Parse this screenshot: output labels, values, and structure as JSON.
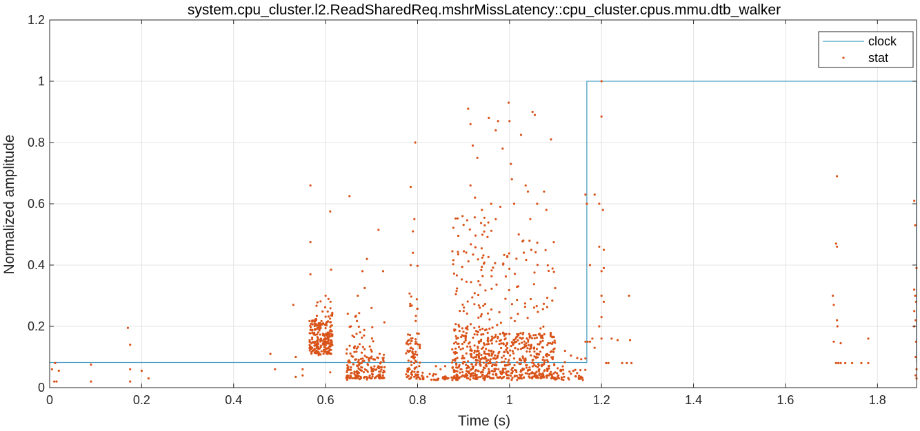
{
  "chart_data": {
    "type": "line",
    "title": "system.cpu_cluster.l2.ReadSharedReq.mshrMissLatency::cpu_cluster.cpus.mmu.dtb_walker",
    "xlabel": "Time (s)",
    "ylabel": "Normalized amplitude",
    "xlim": [
      0,
      1.885
    ],
    "ylim": [
      0,
      1.2
    ],
    "xticks": [
      0,
      0.2,
      0.4,
      0.6,
      0.8,
      1,
      1.2,
      1.4,
      1.6,
      1.8
    ],
    "yticks": [
      0,
      0.2,
      0.4,
      0.6,
      0.8,
      1,
      1.2
    ],
    "xtick_labels": [
      "0",
      "0.2",
      "0.4",
      "0.6",
      "0.8",
      "1",
      "1.2",
      "1.4",
      "1.6",
      "1.8"
    ],
    "ytick_labels": [
      "0",
      "0.2",
      "0.4",
      "0.6",
      "0.8",
      "1",
      "1.2"
    ],
    "grid": true,
    "legend_position": "top-right",
    "colors": {
      "clock": "#4DA0C4",
      "stat": "#D95319",
      "axis": "#262626",
      "grid": "#e3e3e3"
    },
    "series": [
      {
        "name": "clock",
        "kind": "step-line",
        "x": [
          0,
          1.168,
          1.168,
          1.885,
          1.885
        ],
        "y": [
          0.082,
          0.082,
          1,
          1,
          0.082
        ]
      },
      {
        "name": "stat",
        "kind": "scatter",
        "points": [
          [
            0.005,
            0.06
          ],
          [
            0.01,
            0.02
          ],
          [
            0.012,
            0.08
          ],
          [
            0.015,
            0.02
          ],
          [
            0.02,
            0.055
          ],
          [
            0.09,
            0.02
          ],
          [
            0.09,
            0.075
          ],
          [
            0.17,
            0.195
          ],
          [
            0.175,
            0.14
          ],
          [
            0.175,
            0.06
          ],
          [
            0.175,
            0.02
          ],
          [
            0.2,
            0.055
          ],
          [
            0.215,
            0.03
          ],
          [
            0.48,
            0.11
          ],
          [
            0.49,
            0.06
          ],
          [
            0.53,
            0.27
          ],
          [
            0.535,
            0.035
          ],
          [
            0.535,
            0.1
          ],
          [
            0.55,
            0.04
          ],
          [
            0.55,
            0.06
          ],
          [
            0.567,
            0.66
          ],
          [
            0.567,
            0.475
          ],
          [
            0.567,
            0.37
          ],
          [
            0.6,
            0.3
          ],
          [
            0.61,
            0.575
          ],
          [
            0.612,
            0.385
          ],
          [
            0.61,
            0.05
          ],
          [
            0.652,
            0.625
          ],
          [
            0.655,
            0.2
          ],
          [
            0.69,
            0.42
          ],
          [
            0.68,
            0.38
          ],
          [
            0.715,
            0.515
          ],
          [
            0.725,
            0.38
          ],
          [
            0.685,
            0.325
          ],
          [
            0.67,
            0.3
          ],
          [
            0.7,
            0.26
          ],
          [
            0.785,
            0.655
          ],
          [
            0.795,
            0.8
          ],
          [
            0.79,
            0.51
          ],
          [
            0.793,
            0.55
          ],
          [
            0.79,
            0.44
          ],
          [
            0.785,
            0.4
          ],
          [
            0.84,
            0.07
          ],
          [
            0.85,
            0.06
          ],
          [
            0.86,
            0.07
          ],
          [
            0.88,
            0.09
          ],
          [
            0.91,
            0.91
          ],
          [
            0.915,
            0.86
          ],
          [
            0.92,
            0.79
          ],
          [
            0.93,
            0.75
          ],
          [
            0.955,
            0.88
          ],
          [
            0.975,
            0.87
          ],
          [
            0.97,
            0.84
          ],
          [
            0.985,
            0.78
          ],
          [
            0.998,
            0.93
          ],
          [
            1.0,
            0.87
          ],
          [
            1.003,
            0.73
          ],
          [
            1.025,
            0.825
          ],
          [
            1.05,
            0.9
          ],
          [
            1.055,
            0.89
          ],
          [
            1.09,
            0.81
          ],
          [
            0.915,
            0.66
          ],
          [
            0.925,
            0.62
          ],
          [
            0.94,
            0.58
          ],
          [
            0.96,
            0.6
          ],
          [
            0.97,
            0.55
          ],
          [
            0.98,
            0.59
          ],
          [
            1.005,
            0.68
          ],
          [
            1.01,
            0.6
          ],
          [
            1.035,
            0.66
          ],
          [
            1.04,
            0.64
          ],
          [
            1.045,
            0.55
          ],
          [
            1.06,
            0.6
          ],
          [
            1.075,
            0.64
          ],
          [
            1.08,
            0.58
          ],
          [
            1.02,
            0.5
          ],
          [
            1.03,
            0.48
          ],
          [
            1.165,
            0.63
          ],
          [
            1.168,
            0.6
          ],
          [
            1.175,
            0.4
          ],
          [
            1.185,
            0.63
          ],
          [
            1.195,
            0.6
          ],
          [
            1.2,
            1.0
          ],
          [
            1.2,
            0.885
          ],
          [
            1.203,
            0.58
          ],
          [
            1.195,
            0.46
          ],
          [
            1.205,
            0.45
          ],
          [
            1.205,
            0.39
          ],
          [
            1.2,
            0.38
          ],
          [
            1.2,
            0.3
          ],
          [
            1.205,
            0.28
          ],
          [
            1.2,
            0.23
          ],
          [
            1.195,
            0.2
          ],
          [
            1.18,
            0.16
          ],
          [
            1.175,
            0.15
          ],
          [
            1.185,
            0.13
          ],
          [
            1.2,
            0.16
          ],
          [
            1.165,
            0.15
          ],
          [
            1.17,
            0.15
          ],
          [
            1.21,
            0.08
          ],
          [
            1.215,
            0.08
          ],
          [
            1.222,
            0.16
          ],
          [
            1.235,
            0.155
          ],
          [
            1.245,
            0.08
          ],
          [
            1.26,
            0.3
          ],
          [
            1.262,
            0.155
          ],
          [
            1.265,
            0.08
          ],
          [
            1.255,
            0.08
          ],
          [
            1.703,
            0.3
          ],
          [
            1.705,
            0.27
          ],
          [
            1.71,
            0.47
          ],
          [
            1.712,
            0.46
          ],
          [
            1.712,
            0.69
          ],
          [
            1.712,
            0.22
          ],
          [
            1.713,
            0.2
          ],
          [
            1.705,
            0.15
          ],
          [
            1.71,
            0.08
          ],
          [
            1.715,
            0.08
          ],
          [
            1.72,
            0.145
          ],
          [
            1.72,
            0.08
          ],
          [
            1.73,
            0.08
          ],
          [
            1.745,
            0.08
          ],
          [
            1.765,
            0.08
          ],
          [
            1.78,
            0.16
          ],
          [
            1.78,
            0.08
          ],
          [
            1.88,
            0.61
          ],
          [
            1.882,
            0.53
          ],
          [
            1.885,
            0.39
          ],
          [
            1.88,
            0.32
          ],
          [
            1.882,
            0.3
          ],
          [
            1.884,
            0.28
          ],
          [
            1.88,
            0.25
          ],
          [
            1.883,
            0.22
          ],
          [
            1.88,
            0.2
          ],
          [
            1.884,
            0.15
          ],
          [
            1.883,
            0.1
          ],
          [
            1.885,
            0.06
          ],
          [
            1.883,
            0.04
          ],
          [
            1.885,
            0.03
          ]
        ],
        "clusters": [
          {
            "x": [
              0.565,
              0.615
            ],
            "y": [
              0.105,
              0.29
            ],
            "count": 240,
            "dense_y": [
              0.11,
              0.22
            ]
          },
          {
            "x": [
              0.645,
              0.675
            ],
            "y": [
              0.025,
              0.27
            ],
            "count": 70,
            "dense_y": [
              0.03,
              0.14
            ]
          },
          {
            "x": [
              0.665,
              0.73
            ],
            "y": [
              0.025,
              0.22
            ],
            "count": 130,
            "dense_y": [
              0.03,
              0.1
            ]
          },
          {
            "x": [
              0.775,
              0.805
            ],
            "y": [
              0.025,
              0.4
            ],
            "count": 95,
            "dense_y": [
              0.03,
              0.18
            ]
          },
          {
            "x": [
              0.8,
              0.89
            ],
            "y": [
              0.025,
              0.05
            ],
            "count": 45,
            "dense_y": [
              0.025,
              0.04
            ]
          },
          {
            "x": [
              0.875,
              0.965
            ],
            "y": [
              0.025,
              0.56
            ],
            "count": 360,
            "dense_y": [
              0.03,
              0.2
            ]
          },
          {
            "x": [
              0.965,
              1.1
            ],
            "y": [
              0.025,
              0.5
            ],
            "count": 420,
            "dense_y": [
              0.03,
              0.18
            ]
          },
          {
            "x": [
              1.095,
              1.165
            ],
            "y": [
              0.025,
              0.12
            ],
            "count": 50,
            "dense_y": [
              0.025,
              0.06
            ]
          }
        ]
      }
    ]
  }
}
